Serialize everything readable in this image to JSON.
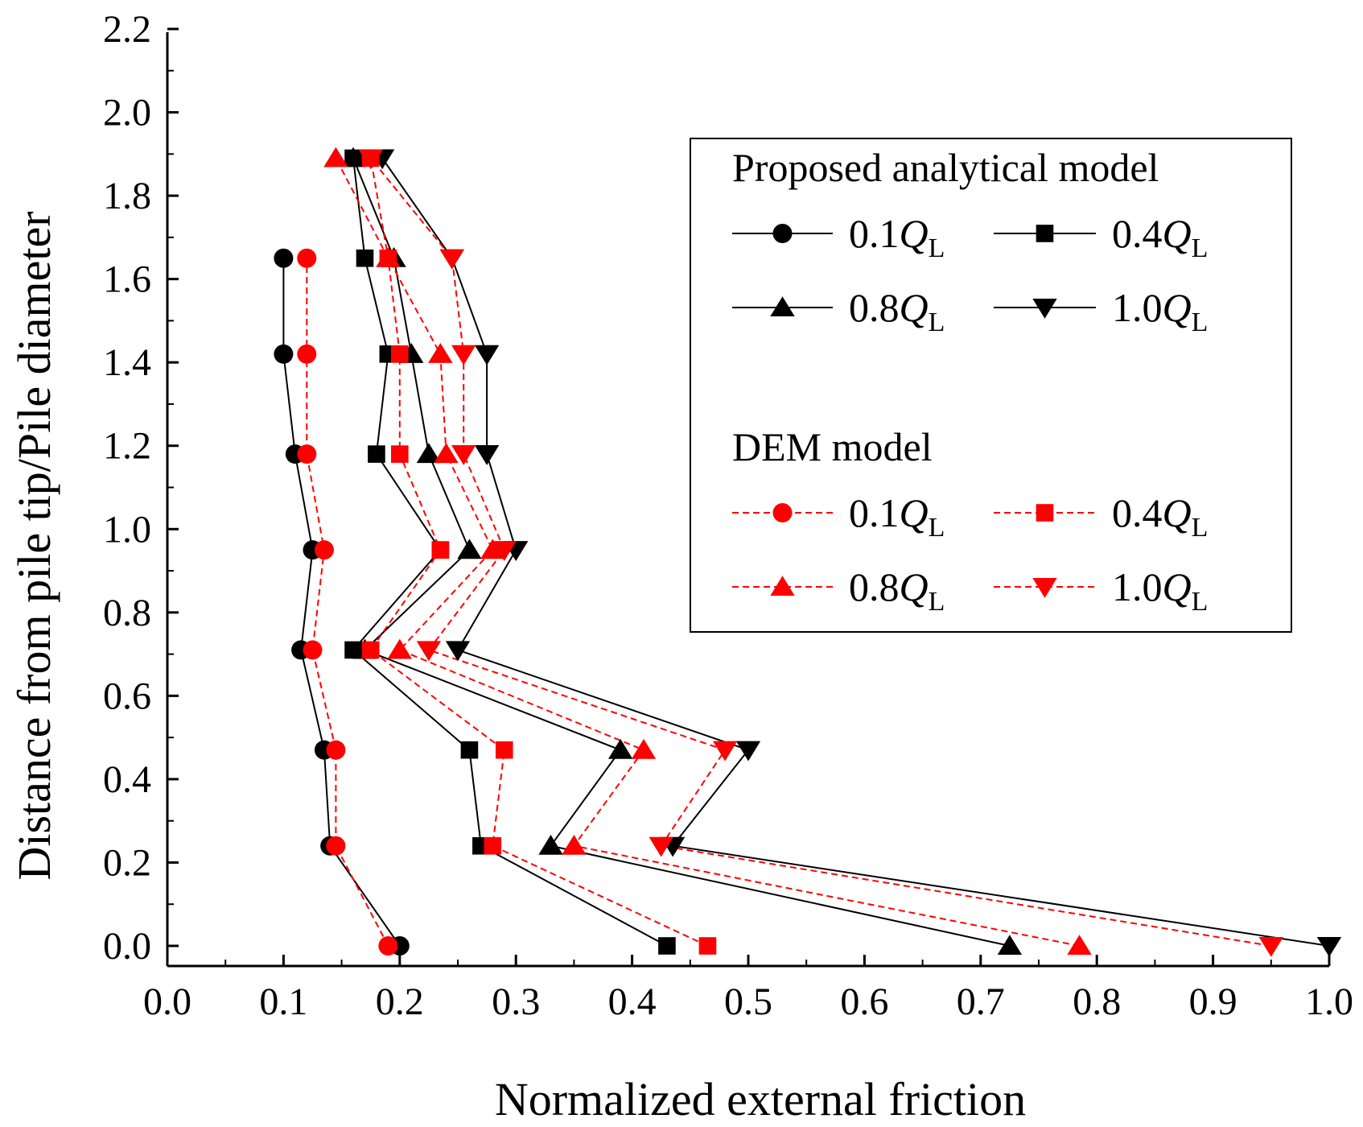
{
  "chart_data": {
    "type": "line",
    "xlabel": "Normalized external friction",
    "ylabel": "Distance from pile tip/Pile diameter",
    "xlim": [
      0.0,
      1.0
    ],
    "ylim": [
      -0.1,
      2.2
    ],
    "x_ticks": [
      "0.0",
      "0.1",
      "0.2",
      "0.3",
      "0.4",
      "0.5",
      "0.6",
      "0.7",
      "0.8",
      "0.9",
      "1.0"
    ],
    "y_ticks": [
      "0.0",
      "0.2",
      "0.4",
      "0.6",
      "0.8",
      "1.0",
      "1.2",
      "1.4",
      "1.6",
      "1.8",
      "2.0",
      "2.2"
    ],
    "legend_groups": [
      {
        "heading": "Proposed analytical model",
        "series_ids": [
          "a01",
          "a04",
          "a08",
          "a10"
        ]
      },
      {
        "heading": "DEM model",
        "series_ids": [
          "d01",
          "d04",
          "d08",
          "d10"
        ]
      }
    ],
    "series": [
      {
        "id": "a01",
        "group": "Proposed analytical model",
        "load": "0.1",
        "label": "Q",
        "sub": "L",
        "marker": "circle",
        "color": "#000000",
        "dashed": false,
        "points": [
          [
            0.2,
            0.0
          ],
          [
            0.14,
            0.24
          ],
          [
            0.135,
            0.47
          ],
          [
            0.115,
            0.71
          ],
          [
            0.125,
            0.95
          ],
          [
            0.11,
            1.18
          ],
          [
            0.1,
            1.42
          ],
          [
            0.1,
            1.65
          ]
        ]
      },
      {
        "id": "a04",
        "group": "Proposed analytical model",
        "load": "0.4",
        "label": "Q",
        "sub": "L",
        "marker": "square",
        "color": "#000000",
        "dashed": false,
        "points": [
          [
            0.43,
            0.0
          ],
          [
            0.27,
            0.24
          ],
          [
            0.26,
            0.47
          ],
          [
            0.16,
            0.71
          ],
          [
            0.235,
            0.95
          ],
          [
            0.18,
            1.18
          ],
          [
            0.19,
            1.42
          ],
          [
            0.17,
            1.65
          ],
          [
            0.16,
            1.89
          ]
        ]
      },
      {
        "id": "a08",
        "group": "Proposed analytical model",
        "load": "0.8",
        "label": "Q",
        "sub": "L",
        "marker": "triangle-up",
        "color": "#000000",
        "dashed": false,
        "points": [
          [
            0.725,
            0.0
          ],
          [
            0.33,
            0.24
          ],
          [
            0.39,
            0.47
          ],
          [
            0.17,
            0.71
          ],
          [
            0.26,
            0.95
          ],
          [
            0.225,
            1.18
          ],
          [
            0.21,
            1.42
          ],
          [
            0.195,
            1.65
          ],
          [
            0.16,
            1.89
          ]
        ]
      },
      {
        "id": "a10",
        "group": "Proposed analytical model",
        "load": "1.0",
        "label": "Q",
        "sub": "L",
        "marker": "triangle-down",
        "color": "#000000",
        "dashed": false,
        "points": [
          [
            1.0,
            0.0
          ],
          [
            0.435,
            0.24
          ],
          [
            0.5,
            0.47
          ],
          [
            0.25,
            0.71
          ],
          [
            0.3,
            0.95
          ],
          [
            0.275,
            1.18
          ],
          [
            0.275,
            1.42
          ],
          [
            0.245,
            1.65
          ],
          [
            0.185,
            1.89
          ]
        ]
      },
      {
        "id": "d01",
        "group": "DEM model",
        "load": "0.1",
        "label": "Q",
        "sub": "L",
        "marker": "circle",
        "color": "#ff0000",
        "dashed": true,
        "points": [
          [
            0.19,
            0.0
          ],
          [
            0.145,
            0.24
          ],
          [
            0.145,
            0.47
          ],
          [
            0.125,
            0.71
          ],
          [
            0.135,
            0.95
          ],
          [
            0.12,
            1.18
          ],
          [
            0.12,
            1.42
          ],
          [
            0.12,
            1.65
          ]
        ]
      },
      {
        "id": "d04",
        "group": "DEM model",
        "load": "0.4",
        "label": "Q",
        "sub": "L",
        "marker": "square",
        "color": "#ff0000",
        "dashed": true,
        "points": [
          [
            0.465,
            0.0
          ],
          [
            0.28,
            0.24
          ],
          [
            0.29,
            0.47
          ],
          [
            0.175,
            0.71
          ],
          [
            0.235,
            0.95
          ],
          [
            0.2,
            1.18
          ],
          [
            0.2,
            1.42
          ],
          [
            0.19,
            1.65
          ],
          [
            0.175,
            1.89
          ]
        ]
      },
      {
        "id": "d08",
        "group": "DEM model",
        "load": "0.8",
        "label": "Q",
        "sub": "L",
        "marker": "triangle-up",
        "color": "#ff0000",
        "dashed": true,
        "points": [
          [
            0.785,
            0.0
          ],
          [
            0.35,
            0.24
          ],
          [
            0.41,
            0.47
          ],
          [
            0.2,
            0.71
          ],
          [
            0.28,
            0.95
          ],
          [
            0.24,
            1.18
          ],
          [
            0.235,
            1.42
          ],
          [
            0.19,
            1.65
          ],
          [
            0.145,
            1.89
          ]
        ]
      },
      {
        "id": "d10",
        "group": "DEM model",
        "load": "1.0",
        "label": "Q",
        "sub": "L",
        "marker": "triangle-down",
        "color": "#ff0000",
        "dashed": true,
        "points": [
          [
            0.95,
            0.0
          ],
          [
            0.425,
            0.24
          ],
          [
            0.48,
            0.47
          ],
          [
            0.225,
            0.71
          ],
          [
            0.29,
            0.95
          ],
          [
            0.255,
            1.18
          ],
          [
            0.255,
            1.42
          ],
          [
            0.245,
            1.65
          ],
          [
            0.175,
            1.89
          ]
        ]
      }
    ]
  }
}
